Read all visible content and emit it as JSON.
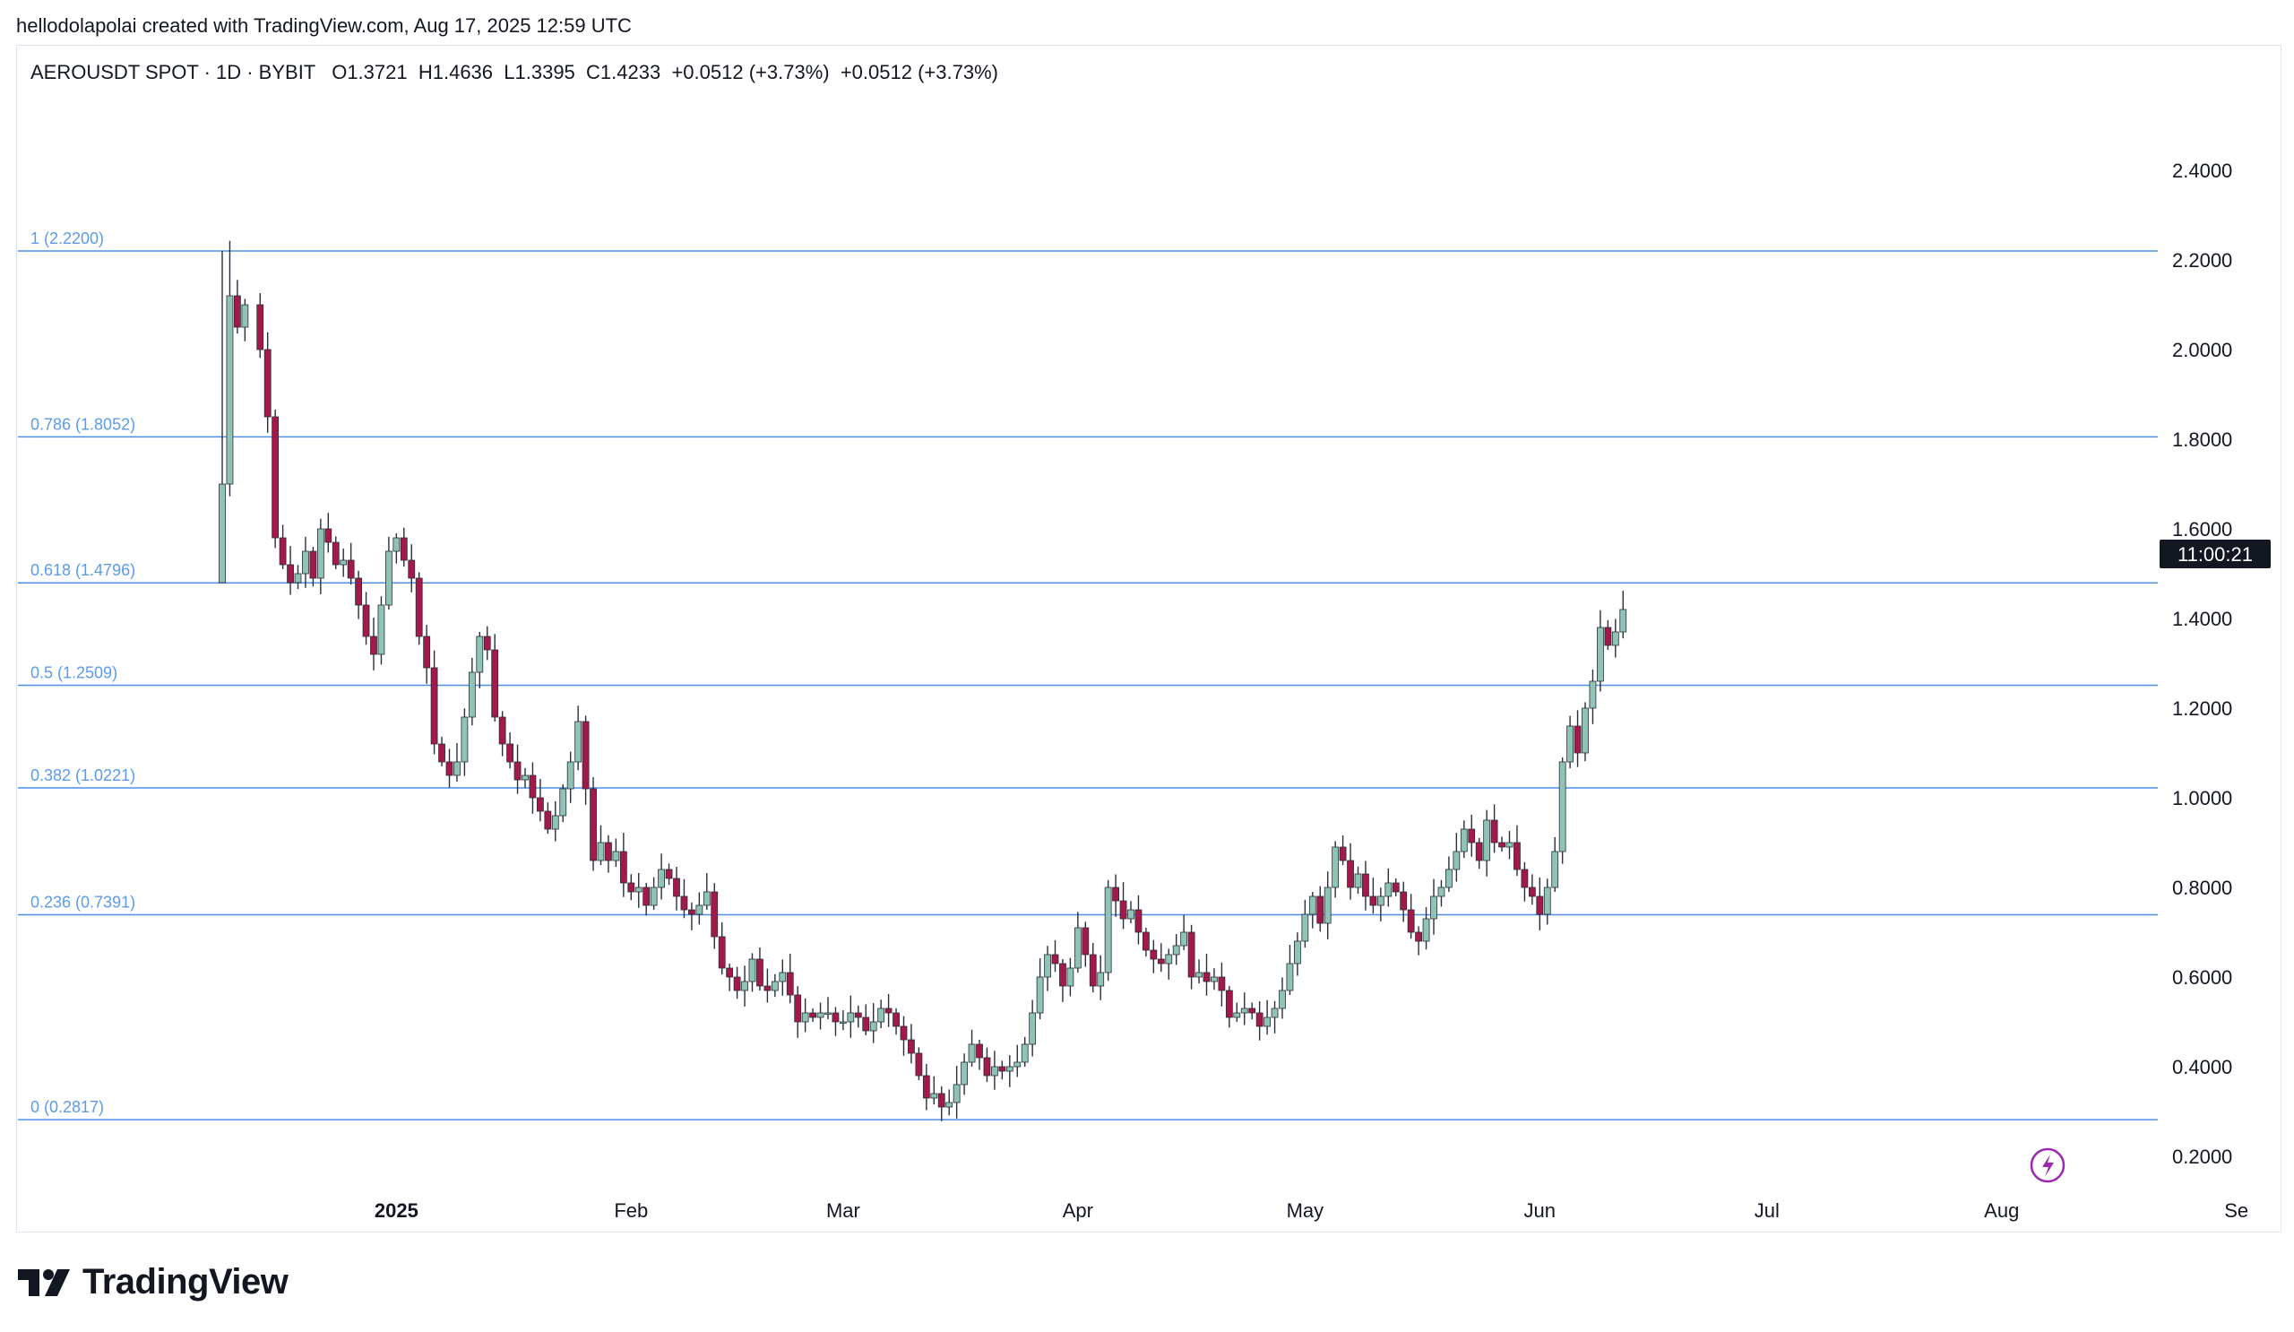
{
  "header": {
    "attribution": "hellodolapolai created with TradingView.com, Aug 17, 2025 12:59 UTC"
  },
  "symbol_bar": {
    "symbol": "AEROUSDT SPOT · 1D · BYBIT",
    "open": "O1.3721",
    "high": "H1.4636",
    "low": "L1.3395",
    "close": "C1.4233",
    "change1": "+0.0512 (+3.73%)",
    "change2": "+0.0512 (+3.73%)"
  },
  "countdown": "11:00:21",
  "brand": {
    "name": "TradingView"
  },
  "colors": {
    "up": "#8fc3b6",
    "down": "#a3194a",
    "fib": "#4d8fe8",
    "fib_label": "#5b9bea"
  },
  "chart_data": {
    "type": "candlestick",
    "title": "AEROUSDT SPOT · 1D · BYBIT",
    "y_ticks": [
      "2.4000",
      "2.2000",
      "2.0000",
      "1.8000",
      "1.6000",
      "1.4000",
      "1.2000",
      "1.0000",
      "0.8000",
      "0.6000",
      "0.4000",
      "0.2000"
    ],
    "y_tick_values": [
      2.4,
      2.2,
      2.0,
      1.8,
      1.6,
      1.4,
      1.2,
      1.0,
      0.8,
      0.6,
      0.4,
      0.2
    ],
    "ylim": [
      0.16,
      2.44
    ],
    "x_ticks": [
      {
        "label": "2025",
        "day": 23,
        "bold": true
      },
      {
        "label": "Feb",
        "day": 54
      },
      {
        "label": "Mar",
        "day": 82
      },
      {
        "label": "Apr",
        "day": 113
      },
      {
        "label": "May",
        "day": 143
      },
      {
        "label": "Jun",
        "day": 174
      },
      {
        "label": "Jul",
        "day": 204
      },
      {
        "label": "Aug",
        "day": 235
      },
      {
        "label": "Se",
        "day": 266
      }
    ],
    "fib_levels": [
      {
        "label": "1 (2.2200)",
        "value": 2.22
      },
      {
        "label": "0.786 (1.8052)",
        "value": 1.8052
      },
      {
        "label": "0.618 (1.4796)",
        "value": 1.4796
      },
      {
        "label": "0.5 (1.2509)",
        "value": 1.2509
      },
      {
        "label": "0.382 (1.0221)",
        "value": 1.0221
      },
      {
        "label": "0.236 (0.7391)",
        "value": 0.7391
      },
      {
        "label": "0 (0.2817)",
        "value": 0.2817
      }
    ],
    "price_anchors": [
      [
        0,
        1.7
      ],
      [
        1,
        2.12
      ],
      [
        2,
        2.05
      ],
      [
        3,
        2.1
      ],
      [
        5,
        2.0
      ],
      [
        6,
        1.85
      ],
      [
        7,
        1.58
      ],
      [
        8,
        1.52
      ],
      [
        9,
        1.48
      ],
      [
        10,
        1.5
      ],
      [
        11,
        1.55
      ],
      [
        12,
        1.49
      ],
      [
        13,
        1.6
      ],
      [
        14,
        1.57
      ],
      [
        15,
        1.52
      ],
      [
        16,
        1.53
      ],
      [
        17,
        1.49
      ],
      [
        18,
        1.43
      ],
      [
        19,
        1.36
      ],
      [
        20,
        1.32
      ],
      [
        21,
        1.43
      ],
      [
        22,
        1.55
      ],
      [
        23,
        1.58
      ],
      [
        24,
        1.53
      ],
      [
        25,
        1.49
      ],
      [
        26,
        1.36
      ],
      [
        27,
        1.29
      ],
      [
        28,
        1.12
      ],
      [
        29,
        1.08
      ],
      [
        30,
        1.05
      ],
      [
        31,
        1.08
      ],
      [
        32,
        1.18
      ],
      [
        33,
        1.28
      ],
      [
        34,
        1.36
      ],
      [
        35,
        1.33
      ],
      [
        36,
        1.18
      ],
      [
        37,
        1.12
      ],
      [
        38,
        1.08
      ],
      [
        39,
        1.04
      ],
      [
        40,
        1.05
      ],
      [
        41,
        1.0
      ],
      [
        42,
        0.97
      ],
      [
        43,
        0.93
      ],
      [
        44,
        0.96
      ],
      [
        45,
        1.02
      ],
      [
        46,
        1.08
      ],
      [
        47,
        1.17
      ],
      [
        48,
        1.02
      ],
      [
        49,
        0.86
      ],
      [
        50,
        0.9
      ],
      [
        51,
        0.86
      ],
      [
        52,
        0.88
      ],
      [
        53,
        0.81
      ],
      [
        54,
        0.79
      ],
      [
        55,
        0.8
      ],
      [
        56,
        0.76
      ],
      [
        57,
        0.8
      ],
      [
        58,
        0.84
      ],
      [
        59,
        0.82
      ],
      [
        60,
        0.78
      ],
      [
        61,
        0.75
      ],
      [
        62,
        0.74
      ],
      [
        63,
        0.76
      ],
      [
        64,
        0.79
      ],
      [
        65,
        0.69
      ],
      [
        66,
        0.62
      ],
      [
        67,
        0.6
      ],
      [
        68,
        0.57
      ],
      [
        69,
        0.59
      ],
      [
        70,
        0.64
      ],
      [
        71,
        0.58
      ],
      [
        72,
        0.57
      ],
      [
        73,
        0.59
      ],
      [
        74,
        0.61
      ],
      [
        75,
        0.56
      ],
      [
        76,
        0.5
      ],
      [
        77,
        0.52
      ],
      [
        78,
        0.51
      ],
      [
        79,
        0.52
      ],
      [
        80,
        0.52
      ],
      [
        81,
        0.5
      ],
      [
        82,
        0.5
      ],
      [
        83,
        0.52
      ],
      [
        84,
        0.51
      ],
      [
        85,
        0.48
      ],
      [
        86,
        0.5
      ],
      [
        87,
        0.53
      ],
      [
        88,
        0.52
      ],
      [
        89,
        0.49
      ],
      [
        90,
        0.46
      ],
      [
        91,
        0.43
      ],
      [
        92,
        0.38
      ],
      [
        93,
        0.33
      ],
      [
        94,
        0.34
      ],
      [
        95,
        0.31
      ],
      [
        96,
        0.32
      ],
      [
        97,
        0.36
      ],
      [
        98,
        0.41
      ],
      [
        99,
        0.45
      ],
      [
        100,
        0.42
      ],
      [
        101,
        0.38
      ],
      [
        102,
        0.4
      ],
      [
        103,
        0.39
      ],
      [
        104,
        0.4
      ],
      [
        105,
        0.41
      ],
      [
        106,
        0.45
      ],
      [
        107,
        0.52
      ],
      [
        108,
        0.6
      ],
      [
        109,
        0.65
      ],
      [
        110,
        0.63
      ],
      [
        111,
        0.58
      ],
      [
        112,
        0.62
      ],
      [
        113,
        0.71
      ],
      [
        114,
        0.65
      ],
      [
        115,
        0.58
      ],
      [
        116,
        0.61
      ],
      [
        117,
        0.8
      ],
      [
        118,
        0.77
      ],
      [
        119,
        0.73
      ],
      [
        120,
        0.75
      ],
      [
        121,
        0.7
      ],
      [
        122,
        0.66
      ],
      [
        123,
        0.64
      ],
      [
        124,
        0.63
      ],
      [
        125,
        0.65
      ],
      [
        126,
        0.67
      ],
      [
        127,
        0.7
      ],
      [
        128,
        0.6
      ],
      [
        129,
        0.61
      ],
      [
        130,
        0.59
      ],
      [
        131,
        0.6
      ],
      [
        132,
        0.57
      ],
      [
        133,
        0.51
      ],
      [
        134,
        0.52
      ],
      [
        135,
        0.53
      ],
      [
        136,
        0.52
      ],
      [
        137,
        0.49
      ],
      [
        138,
        0.51
      ],
      [
        139,
        0.53
      ],
      [
        140,
        0.57
      ],
      [
        141,
        0.63
      ],
      [
        142,
        0.68
      ],
      [
        143,
        0.74
      ],
      [
        144,
        0.78
      ],
      [
        145,
        0.72
      ],
      [
        146,
        0.8
      ],
      [
        147,
        0.89
      ],
      [
        148,
        0.86
      ],
      [
        149,
        0.8
      ],
      [
        150,
        0.83
      ],
      [
        151,
        0.78
      ],
      [
        152,
        0.76
      ],
      [
        153,
        0.78
      ],
      [
        154,
        0.81
      ],
      [
        155,
        0.79
      ],
      [
        156,
        0.75
      ],
      [
        157,
        0.7
      ],
      [
        158,
        0.68
      ],
      [
        159,
        0.73
      ],
      [
        160,
        0.78
      ],
      [
        161,
        0.8
      ],
      [
        162,
        0.84
      ],
      [
        163,
        0.88
      ],
      [
        164,
        0.93
      ],
      [
        165,
        0.9
      ],
      [
        166,
        0.86
      ],
      [
        167,
        0.95
      ],
      [
        168,
        0.9
      ],
      [
        169,
        0.89
      ],
      [
        170,
        0.9
      ],
      [
        171,
        0.84
      ],
      [
        172,
        0.8
      ],
      [
        173,
        0.78
      ],
      [
        174,
        0.74
      ],
      [
        175,
        0.8
      ],
      [
        176,
        0.88
      ],
      [
        177,
        1.08
      ],
      [
        178,
        1.16
      ],
      [
        179,
        1.1
      ],
      [
        180,
        1.2
      ],
      [
        181,
        1.26
      ],
      [
        182,
        1.38
      ],
      [
        183,
        1.34
      ],
      [
        184,
        1.37
      ],
      [
        185,
        1.42
      ]
    ]
  }
}
